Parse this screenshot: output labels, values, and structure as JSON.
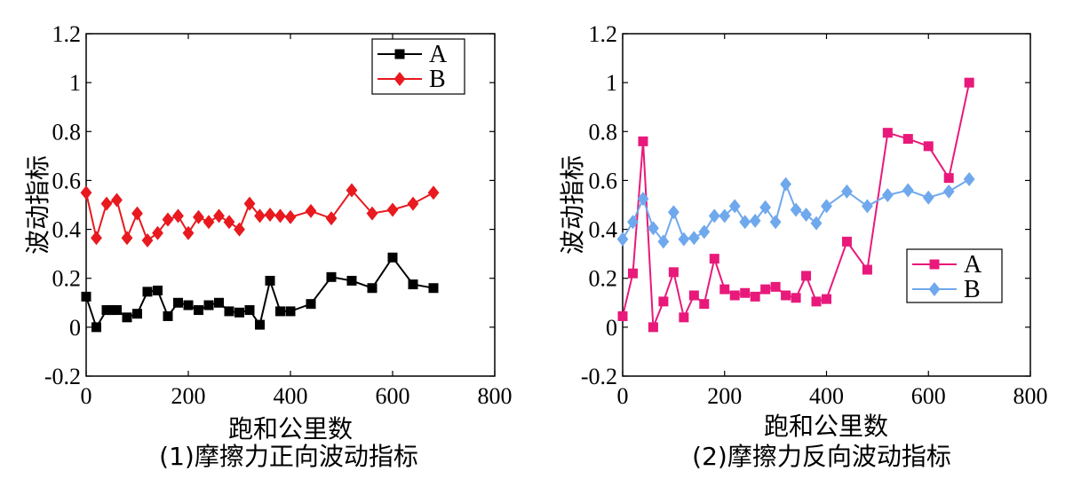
{
  "chart_data": [
    {
      "type": "line",
      "caption": "(1)摩擦力正向波动指标",
      "xlabel": "跑和公里数",
      "ylabel": "波动指标",
      "xlim": [
        0,
        800
      ],
      "ylim": [
        -0.2,
        1.2
      ],
      "xticks": [
        0,
        200,
        400,
        600,
        800
      ],
      "xtick_labels": [
        "0",
        "200",
        "400",
        "600",
        "800"
      ],
      "yticks": [
        -0.2,
        0,
        0.2,
        0.4,
        0.6,
        0.8,
        1,
        1.2
      ],
      "ytick_labels": [
        "-0.2",
        "0",
        "0.2",
        "0.4",
        "0.6",
        "0.8",
        "1",
        "1.2"
      ],
      "legend_position": "top-right",
      "series": [
        {
          "name": "A",
          "color": "#000000",
          "marker": "square",
          "x": [
            0,
            20,
            40,
            50,
            60,
            80,
            100,
            120,
            140,
            160,
            180,
            200,
            220,
            240,
            260,
            280,
            300,
            320,
            340,
            360,
            380,
            400,
            440,
            480,
            520,
            560,
            600,
            640,
            680
          ],
          "y": [
            0.125,
            0.0,
            0.07,
            0.07,
            0.07,
            0.04,
            0.055,
            0.145,
            0.15,
            0.045,
            0.1,
            0.09,
            0.07,
            0.09,
            0.1,
            0.065,
            0.06,
            0.07,
            0.01,
            0.19,
            0.065,
            0.065,
            0.095,
            0.205,
            0.19,
            0.16,
            0.285,
            0.175,
            0.16
          ]
        },
        {
          "name": "B",
          "color": "#e8191f",
          "marker": "diamond",
          "x": [
            0,
            20,
            40,
            60,
            80,
            100,
            120,
            140,
            160,
            180,
            200,
            220,
            240,
            260,
            280,
            300,
            320,
            340,
            360,
            380,
            400,
            440,
            480,
            520,
            560,
            600,
            640,
            680
          ],
          "y": [
            0.55,
            0.365,
            0.505,
            0.52,
            0.365,
            0.465,
            0.355,
            0.385,
            0.44,
            0.455,
            0.385,
            0.45,
            0.43,
            0.455,
            0.43,
            0.4,
            0.505,
            0.455,
            0.46,
            0.455,
            0.45,
            0.475,
            0.445,
            0.56,
            0.465,
            0.48,
            0.505,
            0.55
          ]
        }
      ]
    },
    {
      "type": "line",
      "caption": "(2)摩擦力反向波动指标",
      "xlabel": "跑和公里数",
      "ylabel": "波动指标",
      "xlim": [
        0,
        800
      ],
      "ylim": [
        -0.2,
        1.2
      ],
      "xticks": [
        0,
        200,
        400,
        600,
        800
      ],
      "xtick_labels": [
        "0",
        "200",
        "400",
        "600",
        "800"
      ],
      "yticks": [
        -0.2,
        0,
        0.2,
        0.4,
        0.6,
        0.8,
        1,
        1.2
      ],
      "ytick_labels": [
        "-0.2",
        "0",
        "0.2",
        "0.4",
        "0.6",
        "0.8",
        "1",
        "1.2"
      ],
      "legend_position": "middle-right",
      "series": [
        {
          "name": "A",
          "color": "#e8197a",
          "marker": "square",
          "x": [
            0,
            20,
            40,
            60,
            80,
            100,
            120,
            140,
            160,
            180,
            200,
            220,
            240,
            260,
            280,
            300,
            320,
            340,
            360,
            380,
            400,
            440,
            480,
            520,
            560,
            600,
            640,
            680
          ],
          "y": [
            0.045,
            0.22,
            0.76,
            0.0,
            0.105,
            0.225,
            0.04,
            0.13,
            0.095,
            0.28,
            0.155,
            0.13,
            0.14,
            0.125,
            0.155,
            0.165,
            0.13,
            0.12,
            0.21,
            0.105,
            0.115,
            0.35,
            0.235,
            0.795,
            0.77,
            0.74,
            0.61,
            1.0
          ]
        },
        {
          "name": "B",
          "color": "#6fa8ec",
          "marker": "diamond",
          "x": [
            0,
            20,
            40,
            60,
            80,
            100,
            120,
            140,
            160,
            180,
            200,
            220,
            240,
            260,
            280,
            300,
            320,
            340,
            360,
            380,
            400,
            440,
            480,
            520,
            560,
            600,
            640,
            680
          ],
          "y": [
            0.36,
            0.43,
            0.525,
            0.405,
            0.35,
            0.47,
            0.36,
            0.365,
            0.39,
            0.455,
            0.455,
            0.495,
            0.43,
            0.435,
            0.49,
            0.43,
            0.585,
            0.48,
            0.46,
            0.425,
            0.495,
            0.555,
            0.495,
            0.54,
            0.56,
            0.53,
            0.555,
            0.605
          ]
        }
      ]
    }
  ]
}
